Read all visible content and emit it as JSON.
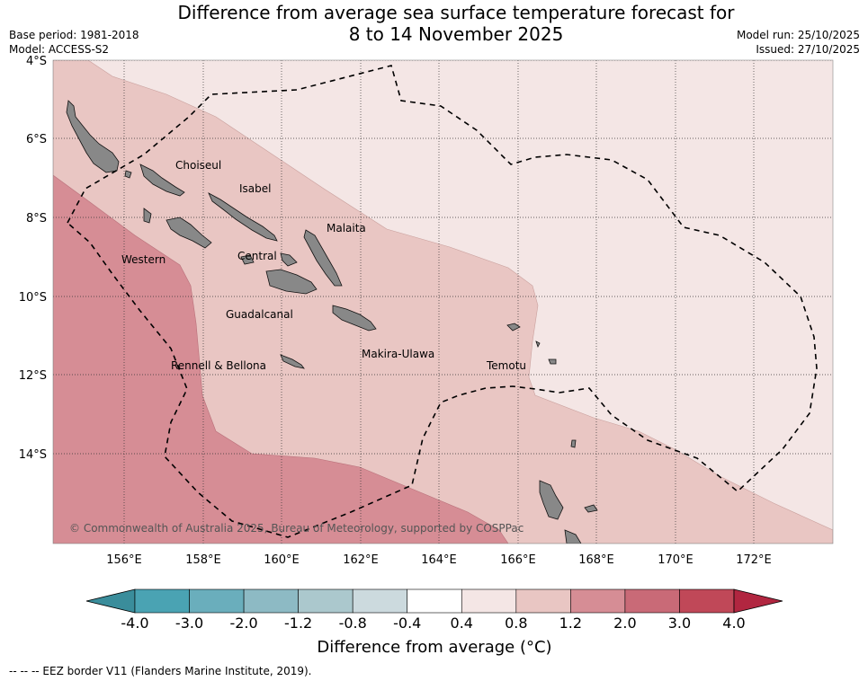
{
  "title_line1": "Difference from average sea surface temperature forecast for",
  "title_line2": "8 to 14 November 2025",
  "meta": {
    "base_period": "Base period: 1981-2018",
    "model": "Model: ACCESS-S2",
    "model_run": "Model run: 25/10/2025",
    "issued": "Issued: 27/10/2025"
  },
  "map": {
    "lat_labels": [
      "4°S",
      "6°S",
      "8°S",
      "10°S",
      "12°S",
      "14°S"
    ],
    "lon_labels": [
      "156°E",
      "158°E",
      "160°E",
      "162°E",
      "164°E",
      "166°E",
      "168°E",
      "170°E",
      "172°E"
    ],
    "places": [
      "Choiseul",
      "Isabel",
      "Malaita",
      "Western",
      "Central",
      "Guadalcanal",
      "Makira-Ulawa",
      "Rennell & Bellona",
      "Temotu"
    ],
    "copyright": "© Commonwealth of Australia 2025, Bureau of Meteorology, supported by COSPPac",
    "colors": {
      "band_0_4_0_8": "#f4e6e5",
      "band_0_8_1_2": "#e9c6c3",
      "band_1_2_2_0": "#d68d95",
      "land": "#888888",
      "eez": "#000000"
    }
  },
  "colorbar": {
    "ticks": [
      "-4.0",
      "-3.0",
      "-2.0",
      "-1.2",
      "-0.8",
      "-0.4",
      "0.4",
      "0.8",
      "1.2",
      "2.0",
      "3.0",
      "4.0"
    ],
    "colors": [
      "#3a8d9b",
      "#4aa3b3",
      "#6aaebc",
      "#8dbac4",
      "#abc8cd",
      "#ccdade",
      "#ffffff",
      "#f4e6e5",
      "#e9c6c3",
      "#d68d95",
      "#c96a77",
      "#c04858",
      "#b12640"
    ],
    "label": "Difference from average (°C)"
  },
  "footnote": "--  --  -- EEZ border V11 (Flanders Marine Institute, 2019)."
}
